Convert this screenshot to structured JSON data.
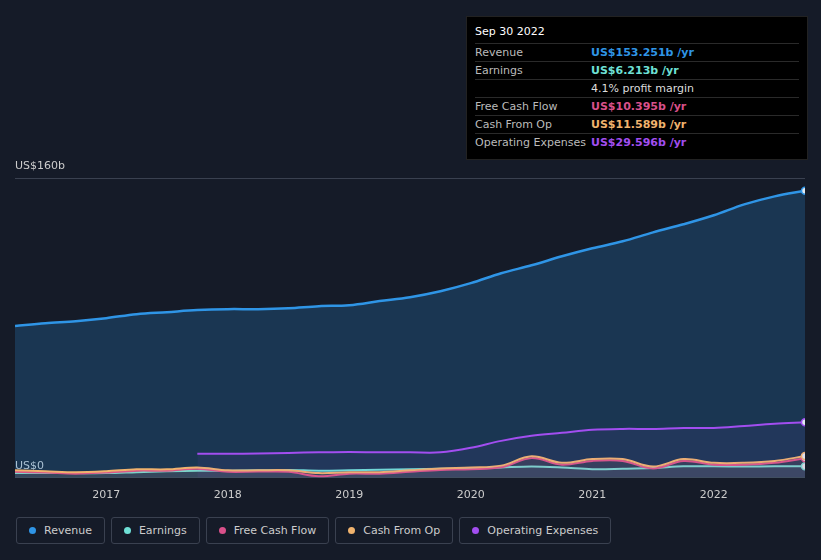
{
  "chart_data": {
    "type": "line",
    "x": [
      2016.25,
      2016.5,
      2016.75,
      2017,
      2017.25,
      2017.5,
      2017.75,
      2018,
      2018.25,
      2018.5,
      2018.75,
      2019,
      2019.25,
      2019.5,
      2019.75,
      2020,
      2020.25,
      2020.5,
      2020.75,
      2021,
      2021.25,
      2021.5,
      2021.75,
      2022,
      2022.25,
      2022.5,
      2022.75
    ],
    "xlim": [
      2016.25,
      2022.75
    ],
    "xticks": [
      2017,
      2018,
      2019,
      2020,
      2021,
      2022
    ],
    "ylim": [
      0,
      160
    ],
    "yticks": [
      {
        "value": 0,
        "label": "US$0"
      },
      {
        "value": 160,
        "label": "US$160b"
      }
    ],
    "grid": true,
    "legend": "bottom-left",
    "series": [
      {
        "name": "Revenue",
        "color": "#2f95e6",
        "values": [
          81,
          82.5,
          83.6,
          85.2,
          87.3,
          88.4,
          89.5,
          90,
          90,
          90.5,
          91.6,
          92.1,
          94.3,
          96.4,
          99.6,
          103.9,
          109.2,
          113.4,
          118.2,
          122.5,
          126.2,
          131,
          135.3,
          140.1,
          145.9,
          150.2,
          153.251
        ]
      },
      {
        "name": "Earnings",
        "color": "#6fe0d6",
        "values": [
          2.5,
          2.6,
          2.5,
          2.5,
          3.0,
          3.5,
          3.8,
          3.8,
          4.0,
          4.2,
          3.8,
          4.0,
          4.3,
          4.6,
          4.8,
          5.0,
          5.5,
          6.0,
          5.5,
          4.6,
          4.8,
          5.2,
          6.1,
          6.1,
          6.0,
          6.1,
          6.213
        ]
      },
      {
        "name": "Free Cash Flow",
        "color": "#d9508a",
        "values": [
          3.2,
          2.8,
          2.2,
          2.8,
          3.8,
          3.8,
          4.8,
          3.2,
          3.3,
          3.2,
          0.8,
          2.2,
          2.2,
          3.2,
          4.2,
          4.6,
          5.6,
          10.5,
          7.0,
          9.0,
          9.0,
          5.0,
          9.0,
          7.0,
          7.0,
          8.0,
          10.395
        ]
      },
      {
        "name": "Cash From Op",
        "color": "#f0b36e",
        "values": [
          4.0,
          3.5,
          3.0,
          3.5,
          4.5,
          4.5,
          5.5,
          4.0,
          4.0,
          4.0,
          2.5,
          3.0,
          3.0,
          4.0,
          5.0,
          5.5,
          6.5,
          11.5,
          8.0,
          10.0,
          10.0,
          6.0,
          10.0,
          8.0,
          8.0,
          9.0,
          11.589
        ]
      },
      {
        "name": "Operating Expenses",
        "color": "#a24ef0",
        "values": [
          null,
          null,
          null,
          null,
          null,
          null,
          12.8,
          12.8,
          13,
          13.3,
          13.6,
          13.8,
          13.6,
          13.6,
          13.6,
          16,
          19.7,
          22.4,
          24,
          25.6,
          26.1,
          26.1,
          26.6,
          26.6,
          27.7,
          28.8,
          29.596
        ]
      }
    ],
    "tooltip": {
      "title": "Sep 30 2022",
      "rows": [
        {
          "label": "Revenue",
          "value": "US$153.251b /yr"
        },
        {
          "label": "Earnings",
          "value": "US$6.213b /yr"
        },
        {
          "value": "4.1% profit margin"
        },
        {
          "label": "Free Cash Flow",
          "value": "US$10.395b /yr"
        },
        {
          "label": "Cash From Op",
          "value": "US$11.589b /yr"
        },
        {
          "label": "Operating Expenses",
          "value": "US$29.596b /yr"
        }
      ]
    }
  }
}
